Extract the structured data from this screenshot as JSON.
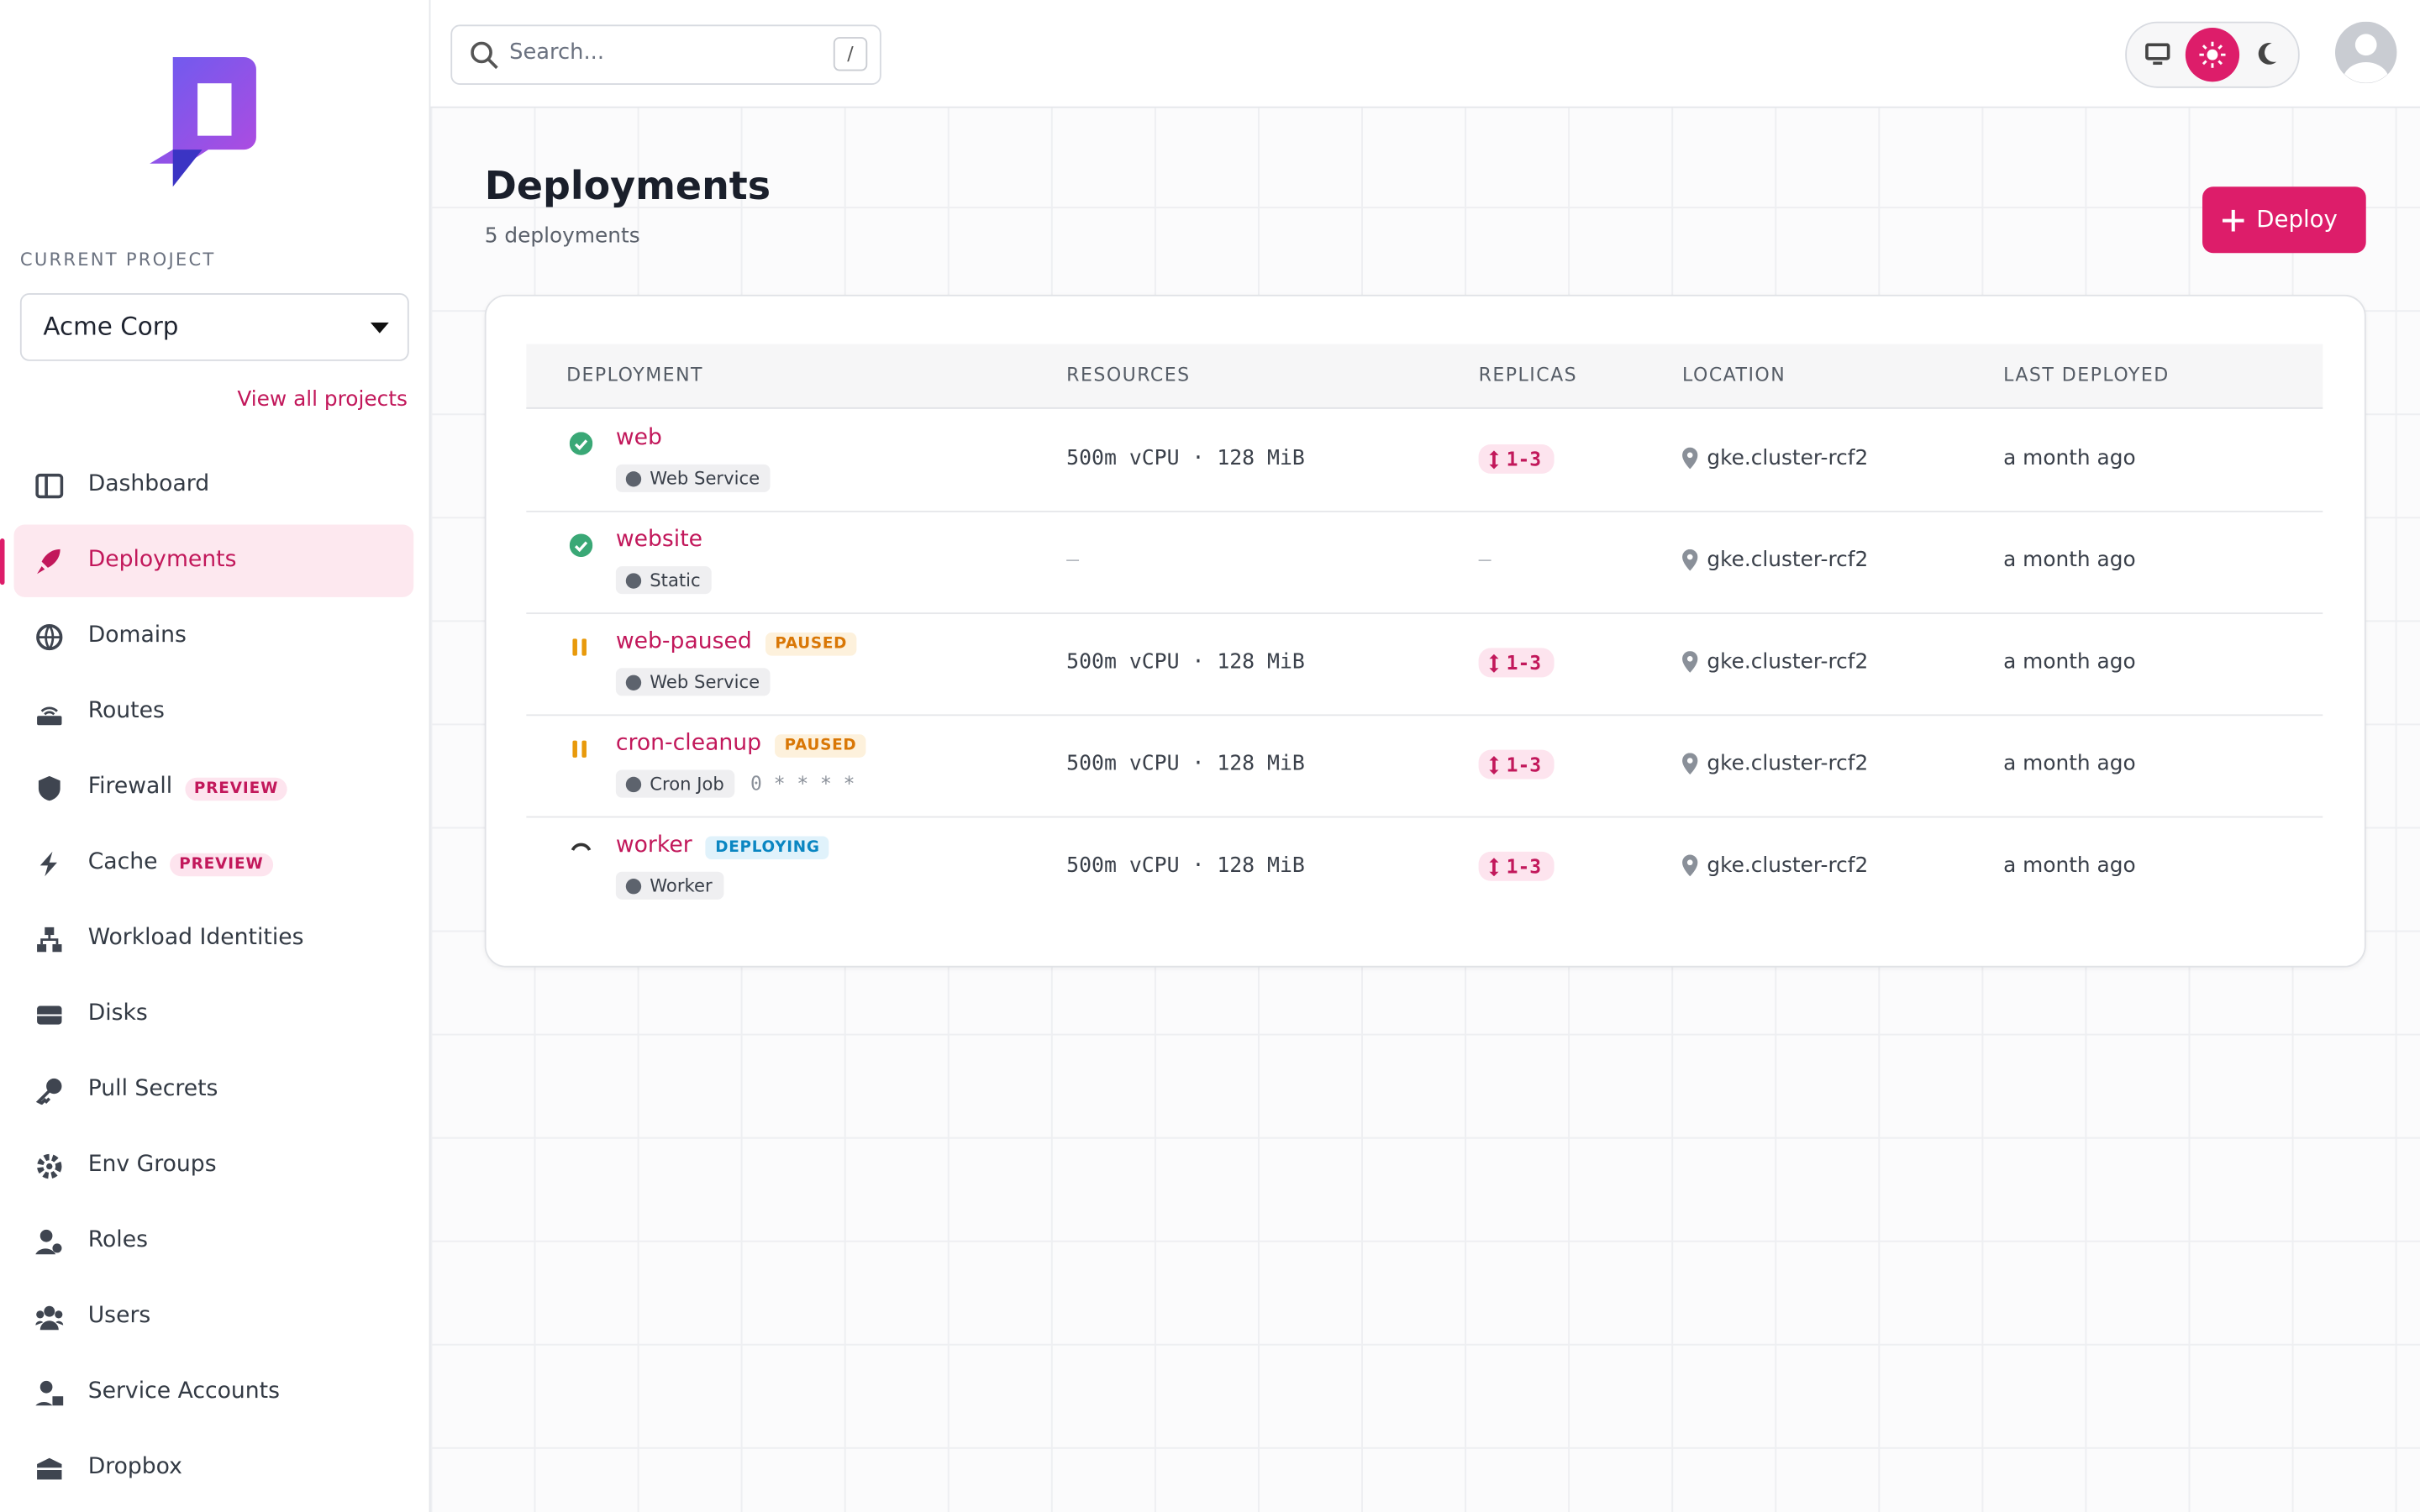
{
  "search": {
    "placeholder": "Search...",
    "shortcut": "/"
  },
  "sidebar": {
    "project_label": "CURRENT PROJECT",
    "project": "Acme Corp",
    "view_all": "View all projects",
    "nav": [
      {
        "label": "Dashboard"
      },
      {
        "label": "Deployments",
        "active": true
      },
      {
        "label": "Domains"
      },
      {
        "label": "Routes"
      },
      {
        "label": "Firewall",
        "badge": "PREVIEW"
      },
      {
        "label": "Cache",
        "badge": "PREVIEW"
      },
      {
        "label": "Workload Identities"
      },
      {
        "label": "Disks"
      },
      {
        "label": "Pull Secrets"
      },
      {
        "label": "Env Groups"
      },
      {
        "label": "Roles"
      },
      {
        "label": "Users"
      },
      {
        "label": "Service Accounts"
      },
      {
        "label": "Dropbox"
      }
    ]
  },
  "page": {
    "title": "Deployments",
    "subtitle": "5 deployments",
    "deploy_button": "Deploy"
  },
  "table": {
    "headers": [
      "DEPLOYMENT",
      "RESOURCES",
      "REPLICAS",
      "LOCATION",
      "LAST DEPLOYED"
    ],
    "rows": [
      {
        "name": "web",
        "type": "Web Service",
        "resources": "500m vCPU · 128 MiB",
        "replicas": "1-3",
        "location": "gke.cluster-rcf2",
        "last_deployed": "a month ago"
      },
      {
        "name": "website",
        "type": "Static",
        "resources": "—",
        "replicas": "—",
        "location": "gke.cluster-rcf2",
        "last_deployed": "a month ago"
      },
      {
        "name": "web-paused",
        "badge": "PAUSED",
        "type": "Web Service",
        "resources": "500m vCPU · 128 MiB",
        "replicas": "1-3",
        "location": "gke.cluster-rcf2",
        "last_deployed": "a month ago"
      },
      {
        "name": "cron-cleanup",
        "badge": "PAUSED",
        "type": "Cron Job",
        "schedule": "0 * * * *",
        "resources": "500m vCPU · 128 MiB",
        "replicas": "1-3",
        "location": "gke.cluster-rcf2",
        "last_deployed": "a month ago"
      },
      {
        "name": "worker",
        "badge": "DEPLOYING",
        "type": "Worker",
        "resources": "500m vCPU · 128 MiB",
        "replicas": "1-3",
        "location": "gke.cluster-rcf2",
        "last_deployed": "a month ago"
      }
    ]
  }
}
